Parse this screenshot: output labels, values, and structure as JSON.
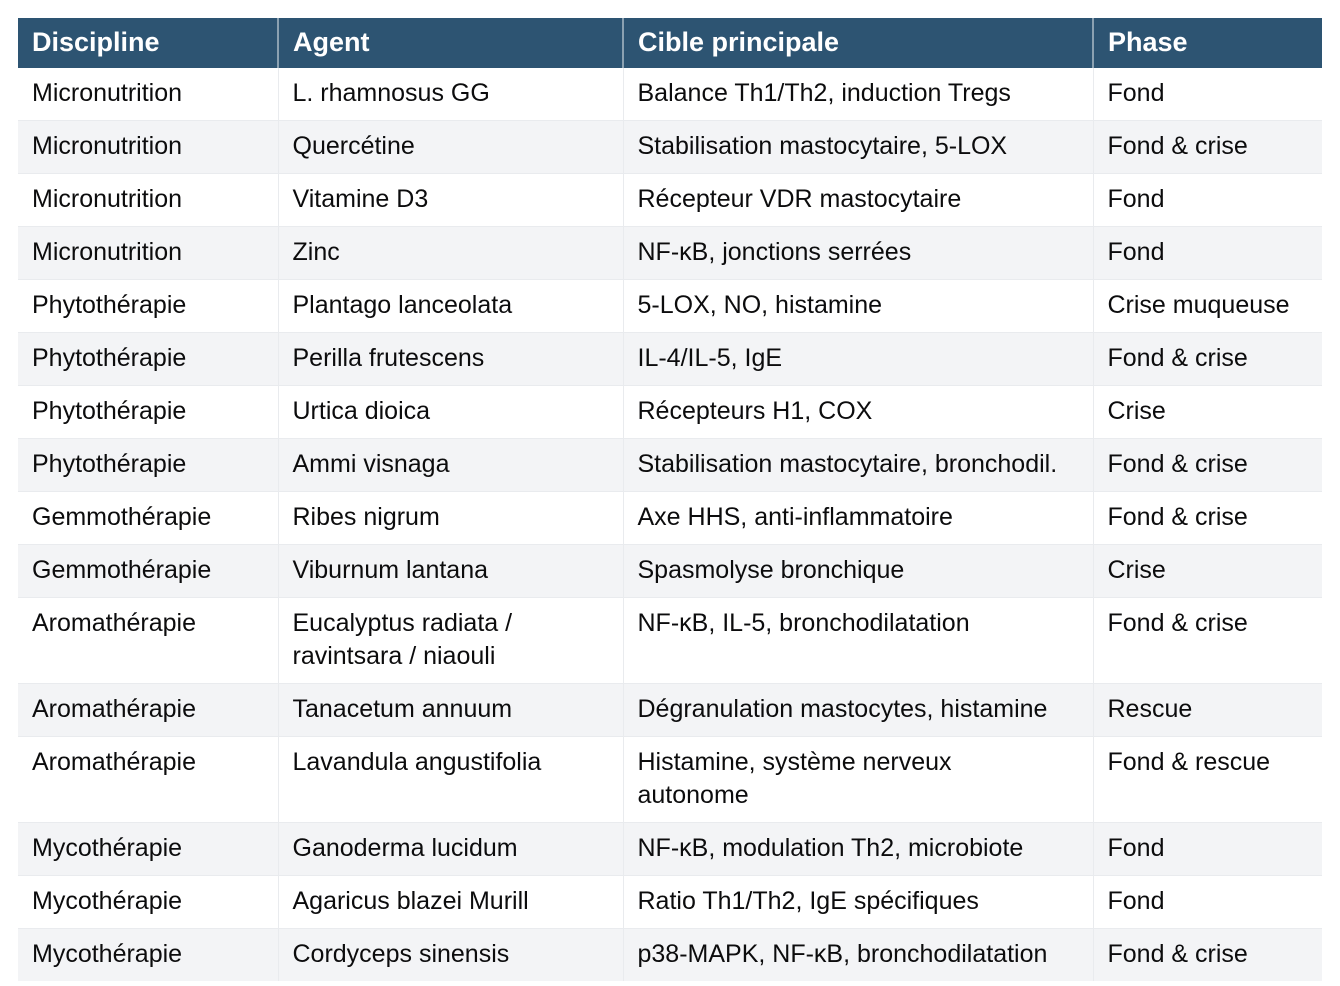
{
  "colors": {
    "header_bg": "#2d5472",
    "header_text": "#ffffff",
    "row_bg": "#ffffff",
    "row_alt_bg": "#f3f4f6",
    "border": "#e9ebee",
    "text": "#0c0c0d",
    "header_sep": "rgba(255,255,255,0.45)"
  },
  "table": {
    "columns": [
      "Discipline",
      "Agent",
      "Cible principale",
      "Phase"
    ],
    "rows": [
      {
        "discipline": "Micronutrition",
        "agent": "L. rhamnosus GG",
        "cible": "Balance Th1/Th2, induction Tregs",
        "phase": "Fond"
      },
      {
        "discipline": "Micronutrition",
        "agent": "Quercétine",
        "cible": "Stabilisation mastocytaire, 5-LOX",
        "phase": "Fond & crise"
      },
      {
        "discipline": "Micronutrition",
        "agent": "Vitamine D3",
        "cible": "Récepteur VDR mastocytaire",
        "phase": "Fond"
      },
      {
        "discipline": "Micronutrition",
        "agent": "Zinc",
        "cible": "NF-κB, jonctions serrées",
        "phase": "Fond"
      },
      {
        "discipline": "Phytothérapie",
        "agent": "Plantago lanceolata",
        "cible": "5-LOX, NO, histamine",
        "phase": "Crise muqueuse"
      },
      {
        "discipline": "Phytothérapie",
        "agent": "Perilla frutescens",
        "cible": "IL-4/IL-5, IgE",
        "phase": "Fond & crise"
      },
      {
        "discipline": "Phytothérapie",
        "agent": "Urtica dioica",
        "cible": "Récepteurs H1, COX",
        "phase": "Crise"
      },
      {
        "discipline": "Phytothérapie",
        "agent": "Ammi visnaga",
        "cible": "Stabilisation mastocytaire, bronchodil.",
        "phase": "Fond & crise"
      },
      {
        "discipline": "Gemmothérapie",
        "agent": "Ribes nigrum",
        "cible": "Axe HHS, anti-inflammatoire",
        "phase": "Fond & crise"
      },
      {
        "discipline": "Gemmothérapie",
        "agent": "Viburnum lantana",
        "cible": "Spasmolyse bronchique",
        "phase": "Crise"
      },
      {
        "discipline": "Aromathérapie",
        "agent": "Eucalyptus radiata /\nravintsara / niaouli",
        "cible": "NF-κB, IL-5, bronchodilatation",
        "phase": "Fond & crise"
      },
      {
        "discipline": "Aromathérapie",
        "agent": "Tanacetum annuum",
        "cible": "Dégranulation mastocytes, histamine",
        "phase": "Rescue"
      },
      {
        "discipline": "Aromathérapie",
        "agent": "Lavandula angustifolia",
        "cible": "Histamine, système nerveux\nautonome",
        "phase": "Fond & rescue"
      },
      {
        "discipline": "Mycothérapie",
        "agent": "Ganoderma lucidum",
        "cible": "NF-κB, modulation Th2, microbiote",
        "phase": "Fond"
      },
      {
        "discipline": "Mycothérapie",
        "agent": "Agaricus blazei Murill",
        "cible": "Ratio Th1/Th2, IgE spécifiques",
        "phase": "Fond"
      },
      {
        "discipline": "Mycothérapie",
        "agent": "Cordyceps sinensis",
        "cible": "p38-MAPK, NF-κB, bronchodilatation",
        "phase": "Fond & crise"
      }
    ]
  }
}
